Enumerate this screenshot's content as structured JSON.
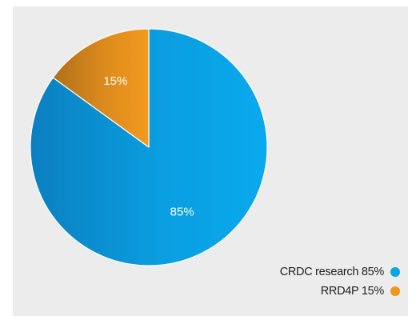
{
  "chart_data": {
    "type": "pie",
    "slices": [
      {
        "label": "CRDC research",
        "value": 85,
        "label_text": "85%",
        "color": "#0aa4e6",
        "legend_text": "CRDC research 85%"
      },
      {
        "label": "RRD4P",
        "value": 15,
        "label_text": "15%",
        "color": "#f0961e",
        "legend_text": "RRD4P 15%"
      }
    ],
    "legend_position": "bottom-right"
  }
}
